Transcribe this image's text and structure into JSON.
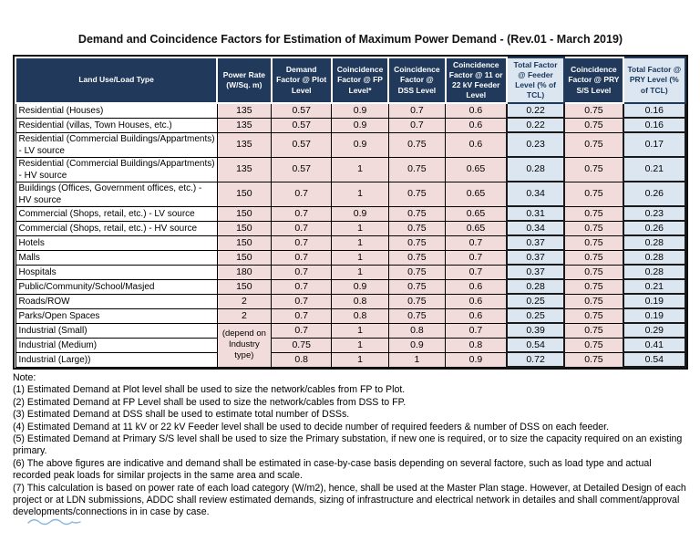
{
  "title": "Demand and Coincidence Factors for Estimation of Maximum Power Demand - (Rev.01 - March 2019)",
  "table": {
    "columns": [
      {
        "label": "Land Use/Load Type",
        "style": "navy"
      },
      {
        "label": "Power Rate (W/Sq. m)",
        "style": "navy"
      },
      {
        "label": "Demand Factor @ Plot Level",
        "style": "navy"
      },
      {
        "label": "Coincidence Factor @ FP Level*",
        "style": "navy"
      },
      {
        "label": "Coincidence Factor @ DSS Level",
        "style": "navy"
      },
      {
        "label": "Coincidence Factor @ 11 or 22 kV Feeder Level",
        "style": "navy"
      },
      {
        "label": "Total Factor @ Feeder Level (% of TCL)",
        "style": "blue"
      },
      {
        "label": "Coincidence Factor @ PRY S/S Level",
        "style": "navy"
      },
      {
        "label": "Total Factor @ PRY Level (% of TCL)",
        "style": "blue"
      }
    ],
    "rows": [
      {
        "label": "Residential (Houses)",
        "values": [
          "135",
          "0.57",
          "0.9",
          "0.7",
          "0.6",
          "0.22",
          "0.75",
          "0.16"
        ]
      },
      {
        "label": "Residential (villas, Town Houses, etc.)",
        "values": [
          "135",
          "0.57",
          "0.9",
          "0.7",
          "0.6",
          "0.22",
          "0.75",
          "0.16"
        ]
      },
      {
        "label": "Residential (Commercial Buildings/Appartments) - LV source",
        "values": [
          "135",
          "0.57",
          "0.9",
          "0.75",
          "0.6",
          "0.23",
          "0.75",
          "0.17"
        ]
      },
      {
        "label": "Residential (Commercial Buildings/Appartments) - HV source",
        "values": [
          "135",
          "0.57",
          "1",
          "0.75",
          "0.65",
          "0.28",
          "0.75",
          "0.21"
        ]
      },
      {
        "label": "Buildings (Offices, Government offices, etc.) - HV source",
        "values": [
          "150",
          "0.7",
          "1",
          "0.75",
          "0.65",
          "0.34",
          "0.75",
          "0.26"
        ]
      },
      {
        "label": "Commercial (Shops, retail, etc.) - LV source",
        "values": [
          "150",
          "0.7",
          "0.9",
          "0.75",
          "0.65",
          "0.31",
          "0.75",
          "0.23"
        ]
      },
      {
        "label": "Commercial (Shops, retail, etc.) - HV source",
        "values": [
          "150",
          "0.7",
          "1",
          "0.75",
          "0.65",
          "0.34",
          "0.75",
          "0.26"
        ]
      },
      {
        "label": "Hotels",
        "values": [
          "150",
          "0.7",
          "1",
          "0.75",
          "0.7",
          "0.37",
          "0.75",
          "0.28"
        ]
      },
      {
        "label": "Malls",
        "values": [
          "150",
          "0.7",
          "1",
          "0.75",
          "0.7",
          "0.37",
          "0.75",
          "0.28"
        ]
      },
      {
        "label": "Hospitals",
        "values": [
          "180",
          "0.7",
          "1",
          "0.75",
          "0.7",
          "0.37",
          "0.75",
          "0.28"
        ]
      },
      {
        "label": "Public/Community/School/Masjed",
        "values": [
          "150",
          "0.7",
          "0.9",
          "0.75",
          "0.6",
          "0.28",
          "0.75",
          "0.21"
        ]
      },
      {
        "label": "Roads/ROW",
        "values": [
          "2",
          "0.7",
          "0.8",
          "0.75",
          "0.6",
          "0.25",
          "0.75",
          "0.19"
        ]
      },
      {
        "label": "Parks/Open Spaces",
        "values": [
          "2",
          "0.7",
          "0.8",
          "0.75",
          "0.6",
          "0.25",
          "0.75",
          "0.19"
        ]
      },
      {
        "label": "Industrial (Small)",
        "merge": {
          "value": "(depend on Industry type)",
          "span": 3
        },
        "values": [
          "0.7",
          "1",
          "0.8",
          "0.7",
          "0.39",
          "0.75",
          "0.29"
        ]
      },
      {
        "label": "Industrial (Medium)",
        "values": [
          "0.75",
          "1",
          "0.9",
          "0.8",
          "0.54",
          "0.75",
          "0.41"
        ]
      },
      {
        "label": "Industrial (Large))",
        "values": [
          "0.8",
          "1",
          "1",
          "0.9",
          "0.72",
          "0.75",
          "0.54"
        ]
      }
    ]
  },
  "notes": {
    "label": "Note:",
    "items": [
      "(1) Estimated Demand at Plot level shall be used to size the network/cables from FP to Plot.",
      "(2) Estimated Demand at FP Level shall be used to size the network/cables from DSS to FP.",
      "(3) Estimated Demand at DSS shall be used to estimate total number of DSSs.",
      "(4) Estimated Demand at 11 kV or 22 kV Feeder level shall be used to decide number of required feeders & number of DSS on each feeder.",
      "(5) Estimated Demand at Primary S/S level shall be used to size the Primary substation, if new one is required, or to size the capacity required on an existing primary.",
      "(6) The above figures are indicative and demand shall be estimated in case-by-case basis depending on several factore, such as load type and actual recorded peak loads for similar projects in the same area and scale.",
      "(7) This calculation is based on power rate of each load category (W/m2), hence, shall be used at the Master Plan stage. However, at Detailed Design of each project or at LDN submissions, ADDC shall review estimated demands, sizing of infrastructure and electrical network in detailes and shall comment/approval developments/connections in in case by case."
    ]
  },
  "colors": {
    "header_navy": "#21395a",
    "header_light_blue": "#dce6f1",
    "cell_pink": "#f2dcdb",
    "cell_blue": "#dce6f1",
    "scribble_blue": "#6fa8dc"
  }
}
